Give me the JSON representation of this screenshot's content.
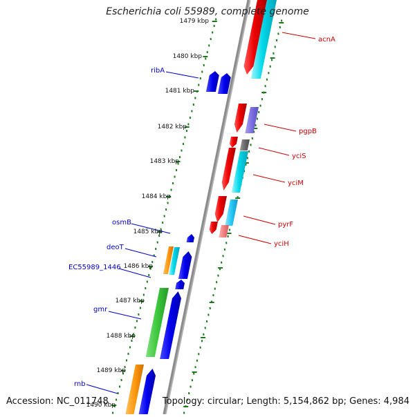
{
  "title": "Escherichia coli 55989, complete genome",
  "footer": {
    "accession": "Accession: NC_011748",
    "topology": "Topology: circular; Length: 5,154,862 bp; Genes: 4,984"
  },
  "colors": {
    "backbone": "#8c8c8c",
    "tick": "#1a7a1a",
    "label_red": "#cc0000",
    "label_blue": "#0000cc"
  },
  "ticks": [
    {
      "label": "1479 kbp"
    },
    {
      "label": "1480 kbp"
    },
    {
      "label": "1481 kbp"
    },
    {
      "label": "1482 kbp"
    },
    {
      "label": "1483 kbp"
    },
    {
      "label": "1484 kbp"
    },
    {
      "label": "1485 kbp"
    },
    {
      "label": "1486 kbp"
    },
    {
      "label": "1487 kbp"
    },
    {
      "label": "1488 kbp"
    },
    {
      "label": "1489 kbp"
    },
    {
      "label": "1490 kbp"
    }
  ],
  "gene_labels_right": [
    "acnA",
    "pgpB",
    "yciS",
    "yciM",
    "pyrF",
    "yciH"
  ],
  "gene_labels_left": [
    "ribA",
    "osmB",
    "deoT",
    "EC55989_1446",
    "gmr",
    "rnb"
  ]
}
